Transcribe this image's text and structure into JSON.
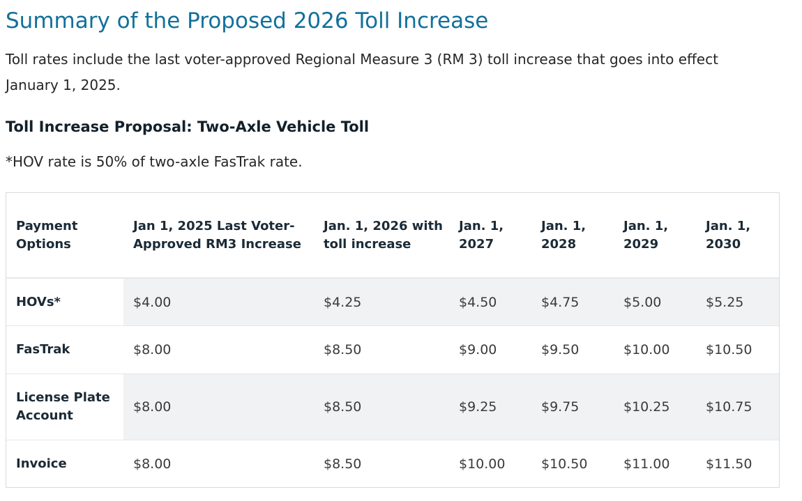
{
  "page": {
    "title": "Summary of the Proposed 2026 Toll Increase",
    "intro": "Toll rates include the last voter-approved Regional Measure 3 (RM 3) toll increase that goes into effect January 1, 2025.",
    "section_heading": "Toll Increase Proposal: Two-Axle Vehicle Toll",
    "note": "*HOV rate is 50% of two-axle FasTrak rate."
  },
  "table": {
    "headers": [
      "Payment Options",
      "Jan 1, 2025 Last Voter-Approved RM3 Increase",
      "Jan. 1, 2026 with toll increase",
      "Jan. 1, 2027",
      "Jan. 1, 2028",
      "Jan. 1, 2029",
      "Jan. 1, 2030"
    ],
    "rows": [
      {
        "label": "HOVs*",
        "values": [
          "$4.00",
          "$4.25",
          "$4.50",
          "$4.75",
          "$5.00",
          "$5.25"
        ]
      },
      {
        "label": "FasTrak",
        "values": [
          "$8.00",
          "$8.50",
          "$9.00",
          "$9.50",
          "$10.00",
          "$10.50"
        ]
      },
      {
        "label": "License Plate Account",
        "values": [
          "$8.00",
          "$8.50",
          "$9.25",
          "$9.75",
          "$10.25",
          "$10.75"
        ]
      },
      {
        "label": "Invoice",
        "values": [
          "$8.00",
          "$8.50",
          "$10.00",
          "$10.50",
          "$11.00",
          "$11.50"
        ]
      }
    ]
  }
}
